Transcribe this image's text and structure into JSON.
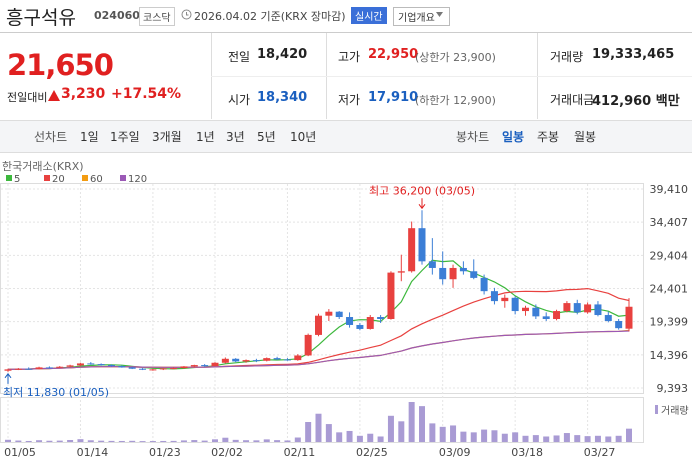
{
  "header": {
    "name": "흥구석유",
    "code": "024060",
    "market": "코스닥",
    "date": "2026.04.02 기준(KRX 장마감)",
    "realtime": "실시간",
    "company": "기업개요",
    "price": "21,650",
    "change_label": "전일대비",
    "change": "3,230",
    "change_pct": "+17.54%"
  },
  "stats": [
    {
      "label": "전일",
      "value": "18,420"
    },
    {
      "label": "고가",
      "value": "22,950",
      "note": "(상한가 23,900)"
    },
    {
      "label": "거래량",
      "value": "19,333,465"
    },
    {
      "label": "시가",
      "value": "18,340"
    },
    {
      "label": "저가",
      "value": "17,910",
      "note": "(하한가 12,900)"
    },
    {
      "label": "거래대금",
      "value": "412,960 백만"
    }
  ],
  "tabs": {
    "line_label": "선차트",
    "line_periods": [
      "1일",
      "1주일",
      "3개월",
      "1년",
      "3년",
      "5년",
      "10년"
    ],
    "candle_label": "봉차트",
    "candle_periods": [
      "일봉",
      "주봉",
      "월봉"
    ]
  },
  "chart_data": {
    "type": "candlestick",
    "source": "한국거래소(KRX)",
    "ylim": [
      9393,
      39410
    ],
    "yticks": [
      {
        "value": 9393,
        "label": "9,393"
      },
      {
        "value": 14396,
        "label": "14,396"
      },
      {
        "value": 19399,
        "label": "19,399"
      },
      {
        "value": 24401,
        "label": "24,401"
      },
      {
        "value": 29404,
        "label": "29,404"
      },
      {
        "value": 34407,
        "label": "34,407"
      },
      {
        "value": 39410,
        "label": "39,410"
      }
    ],
    "grid": true,
    "up_color": "#e8413f",
    "down_color": "#3b7ed6",
    "categories": [
      "01/05",
      null,
      null,
      null,
      null,
      null,
      null,
      "01/14",
      null,
      null,
      null,
      null,
      null,
      null,
      "01/23",
      null,
      null,
      null,
      null,
      null,
      "02/02",
      null,
      null,
      null,
      null,
      null,
      null,
      "02/11",
      null,
      null,
      null,
      null,
      null,
      null,
      "02/25",
      null,
      null,
      null,
      null,
      null,
      null,
      null,
      "03/09",
      null,
      null,
      null,
      null,
      null,
      null,
      "03/18",
      null,
      null,
      null,
      null,
      null,
      null,
      "03/27",
      null,
      null,
      null,
      null
    ],
    "ohlc": [
      [
        12000,
        12300,
        11830,
        12200
      ],
      [
        12200,
        12400,
        12100,
        12300
      ],
      [
        12300,
        12500,
        12150,
        12250
      ],
      [
        12250,
        12600,
        12200,
        12500
      ],
      [
        12500,
        12650,
        12350,
        12450
      ],
      [
        12450,
        12700,
        12400,
        12600
      ],
      [
        12600,
        12900,
        12500,
        12800
      ],
      [
        12800,
        13200,
        12700,
        13100
      ],
      [
        13100,
        13300,
        12900,
        13000
      ],
      [
        13000,
        13100,
        12750,
        12850
      ],
      [
        12850,
        12950,
        12600,
        12700
      ],
      [
        12700,
        12800,
        12450,
        12500
      ],
      [
        12500,
        12600,
        12250,
        12300
      ],
      [
        12300,
        12400,
        12100,
        12150
      ],
      [
        12150,
        12300,
        12000,
        12200
      ],
      [
        12200,
        12400,
        12100,
        12350
      ],
      [
        12350,
        12500,
        12200,
        12400
      ],
      [
        12400,
        12700,
        12300,
        12650
      ],
      [
        12650,
        12900,
        12500,
        12850
      ],
      [
        12850,
        13000,
        12600,
        12700
      ],
      [
        12700,
        13300,
        12650,
        13200
      ],
      [
        13200,
        14000,
        13100,
        13800
      ],
      [
        13800,
        13900,
        13300,
        13400
      ],
      [
        13400,
        13700,
        13200,
        13600
      ],
      [
        13600,
        13800,
        13300,
        13500
      ],
      [
        13500,
        14000,
        13400,
        13900
      ],
      [
        13900,
        14100,
        13600,
        13700
      ],
      [
        13700,
        13900,
        13500,
        13600
      ],
      [
        13600,
        14500,
        13500,
        14300
      ],
      [
        14300,
        17600,
        14200,
        17400
      ],
      [
        17400,
        20600,
        17200,
        20300
      ],
      [
        20300,
        21300,
        19500,
        20900
      ],
      [
        20900,
        21000,
        19800,
        20100
      ],
      [
        20100,
        20800,
        18500,
        18900
      ],
      [
        18900,
        19200,
        18100,
        18300
      ],
      [
        18300,
        20400,
        18200,
        20100
      ],
      [
        20100,
        20400,
        19200,
        19800
      ],
      [
        19800,
        27000,
        19700,
        26800
      ],
      [
        26800,
        29500,
        25500,
        27000
      ],
      [
        27000,
        34500,
        26800,
        33500
      ],
      [
        33500,
        36200,
        28000,
        28500
      ],
      [
        28500,
        32000,
        26500,
        27500
      ],
      [
        27500,
        30000,
        25000,
        25800
      ],
      [
        25800,
        28000,
        24500,
        27500
      ],
      [
        27500,
        28500,
        26500,
        27000
      ],
      [
        27000,
        28800,
        25800,
        26000
      ],
      [
        26000,
        26500,
        23500,
        24000
      ],
      [
        24000,
        24500,
        22000,
        22500
      ],
      [
        22500,
        23500,
        21500,
        23000
      ],
      [
        23000,
        23200,
        20500,
        21000
      ],
      [
        21000,
        21800,
        20300,
        21500
      ],
      [
        21500,
        22000,
        19800,
        20200
      ],
      [
        20200,
        20800,
        19500,
        19800
      ],
      [
        19800,
        21200,
        19600,
        21000
      ],
      [
        21000,
        22500,
        20800,
        22200
      ],
      [
        22200,
        22700,
        20500,
        20800
      ],
      [
        20800,
        22300,
        20600,
        22000
      ],
      [
        22000,
        22500,
        20200,
        20400
      ],
      [
        20400,
        20900,
        19300,
        19500
      ],
      [
        19500,
        19800,
        18200,
        18420
      ],
      [
        18340,
        22950,
        17910,
        21650
      ]
    ],
    "moving_averages": [
      {
        "name": "5",
        "color": "#3db83d"
      },
      {
        "name": "20",
        "color": "#e8413f"
      },
      {
        "name": "60",
        "color": "#f39c12"
      },
      {
        "name": "120",
        "color": "#9b59b6"
      }
    ],
    "high_annotation": "최고 36,200 (03/05)",
    "low_annotation": "최저 11,830 (01/05)",
    "volume": {
      "name": "거래량",
      "color": "#a99bd4",
      "values": [
        3200000,
        2100000,
        1500000,
        2600000,
        1800000,
        2000000,
        2900000,
        4100000,
        2500000,
        1900000,
        1600000,
        1500000,
        1700000,
        1300000,
        1400000,
        1500000,
        1600000,
        2300000,
        2800000,
        2000000,
        3900000,
        6200000,
        3100000,
        2600000,
        2400000,
        3800000,
        2700000,
        2200000,
        6500000,
        29000000,
        41000000,
        26000000,
        14000000,
        16000000,
        9000000,
        12000000,
        8000000,
        38000000,
        30000000,
        58000000,
        52000000,
        27000000,
        22000000,
        24000000,
        15000000,
        14000000,
        18000000,
        17000000,
        12000000,
        14000000,
        9000000,
        10000000,
        8000000,
        9500000,
        13000000,
        10000000,
        8500000,
        9000000,
        8000000,
        9000000,
        19333465
      ]
    }
  }
}
